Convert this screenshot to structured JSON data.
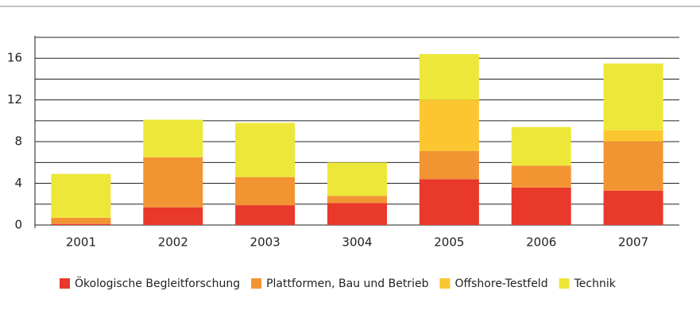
{
  "chart_data": {
    "type": "stacked-bar",
    "categories": [
      "2001",
      "2002",
      "2003",
      "3004",
      "2005",
      "2006",
      "2007"
    ],
    "series": [
      {
        "name": "Ökologische Begleitforschung",
        "color": "#e8392b",
        "values": [
          0.1,
          1.7,
          1.9,
          2.1,
          4.4,
          3.6,
          3.3
        ]
      },
      {
        "name": "Plattformen, Bau und Betrieb",
        "color": "#f39433",
        "values": [
          0.6,
          4.8,
          2.7,
          0.7,
          2.7,
          2.1,
          4.7
        ]
      },
      {
        "name": "Offshore-Testfeld",
        "color": "#fcc630",
        "values": [
          0,
          0,
          0,
          0,
          4.9,
          0,
          1.1
        ]
      },
      {
        "name": "Technik",
        "color": "#ede73a",
        "values": [
          4.2,
          3.6,
          5.2,
          3.2,
          4.4,
          3.7,
          6.4
        ]
      }
    ],
    "ylim": [
      0,
      18
    ],
    "yticks": [
      0,
      4,
      8,
      12,
      16
    ],
    "minor_yticks": [
      2,
      6,
      10,
      14,
      18
    ],
    "grid": true,
    "legend": "bottom"
  }
}
